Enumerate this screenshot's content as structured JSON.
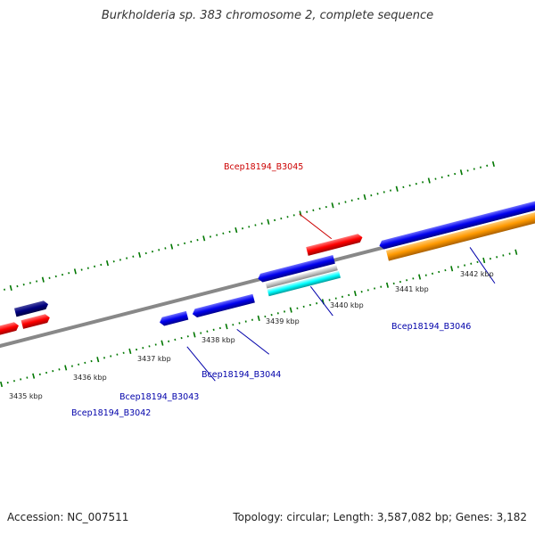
{
  "title": "Burkholderia sp. 383 chromosome 2, complete sequence",
  "footer": {
    "accession": "Accession: NC_007511",
    "topology": "Topology: circular; Length: 3,587,082 bp; Genes: 3,182"
  },
  "colors": {
    "forward_gene": "#ff0000",
    "reverse_gene": "#0000ee",
    "dark_gene": "#000080",
    "rrna": "#00ffff",
    "misc": "#c0c0c0",
    "orange_feature": "#ff9900",
    "backbone": "#888888",
    "tick": "#007700",
    "forward_label": "#cc0000",
    "reverse_label": "#0000aa"
  },
  "tick_labels": [
    "3435 kbp",
    "3436 kbp",
    "3437 kbp",
    "3438 kbp",
    "3439 kbp",
    "3440 kbp",
    "3441 kbp",
    "3442 kbp"
  ],
  "gene_labels": {
    "b3045": "Bcep18194_B3045",
    "b3042": "Bcep18194_B3042",
    "b3043": "Bcep18194_B3043",
    "b3044": "Bcep18194_B3044",
    "b3046": "Bcep18194_B3046"
  }
}
